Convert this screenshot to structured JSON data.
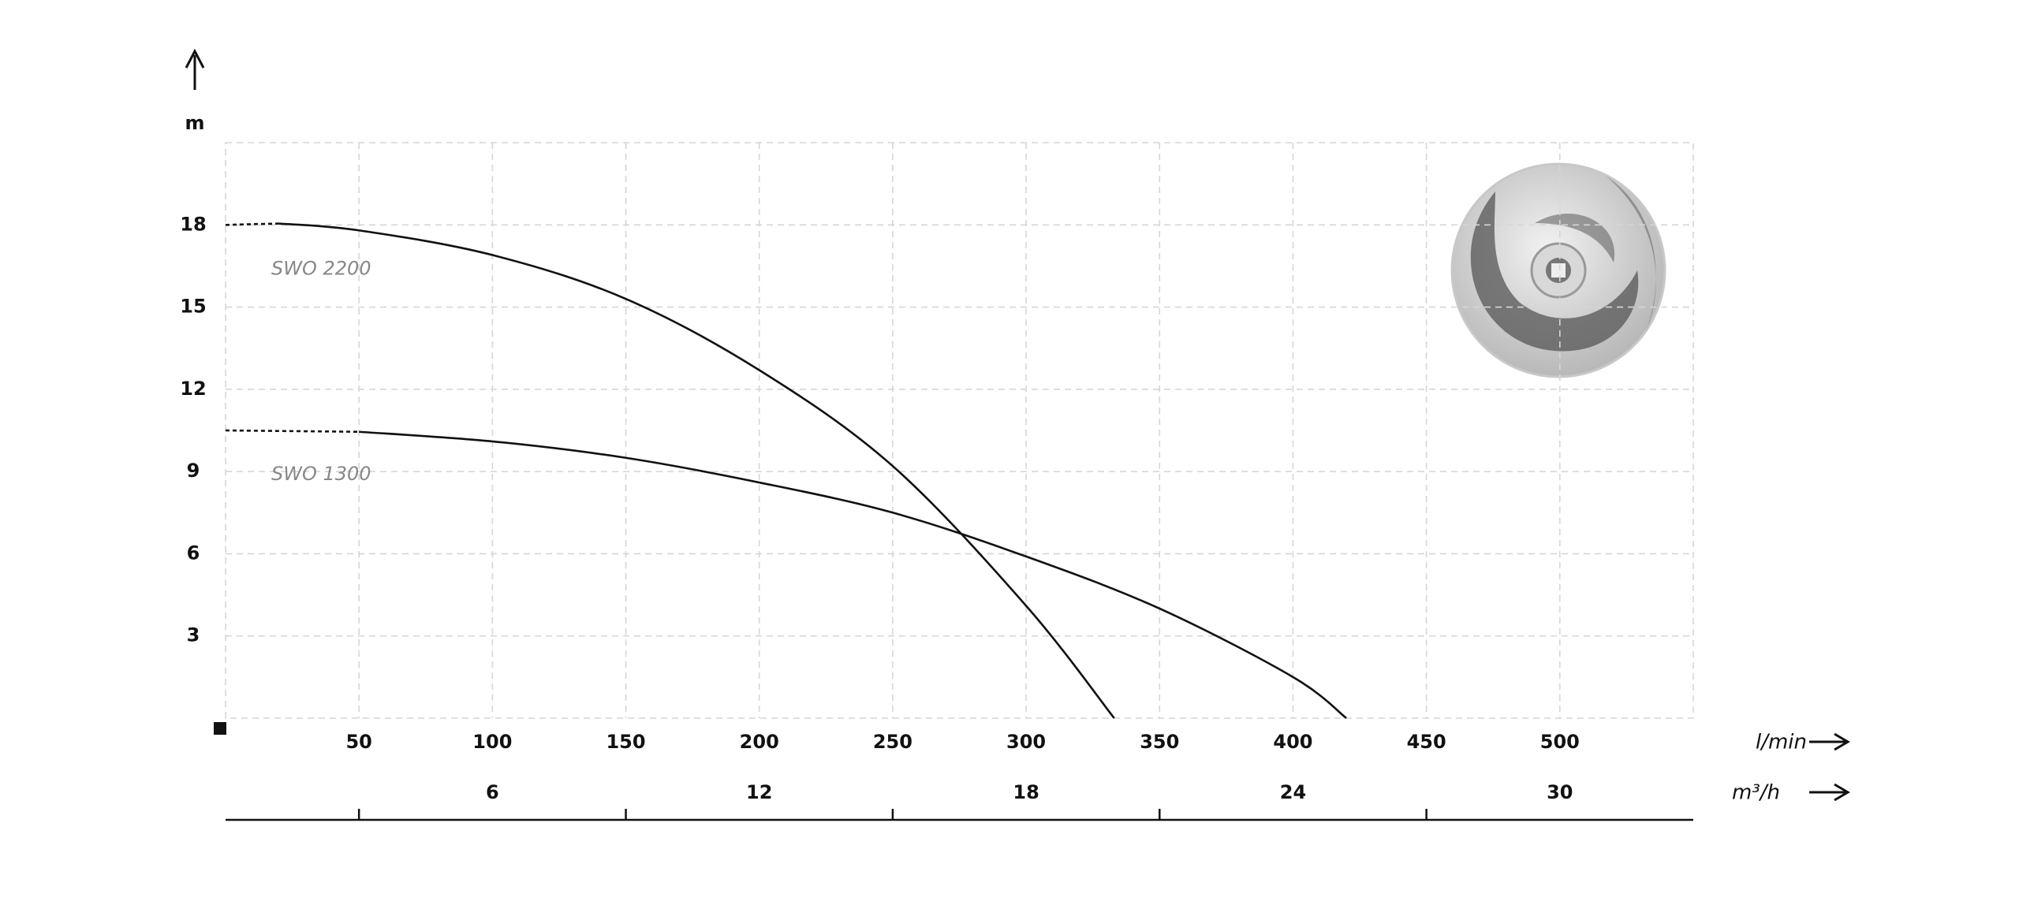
{
  "chart_data": {
    "type": "line",
    "x": [
      0,
      20,
      50,
      100,
      150,
      200,
      250,
      300,
      333
    ],
    "x_label": "l/min",
    "y_label": "m",
    "x2_label": "m³/h",
    "series": [
      {
        "name": "SWO 2200",
        "color": "#111111",
        "x": [
          0,
          20,
          50,
          100,
          150,
          200,
          250,
          300,
          333
        ],
        "values": [
          18,
          18.05,
          17.8,
          16.9,
          15.3,
          12.7,
          9.2,
          4.1,
          0
        ]
      },
      {
        "name": "SWO 1300",
        "color": "#111111",
        "x": [
          0,
          50,
          100,
          150,
          200,
          250,
          300,
          350,
          400,
          420
        ],
        "values": [
          10.5,
          10.45,
          10.1,
          9.5,
          8.6,
          7.5,
          5.9,
          4.0,
          1.5,
          0
        ]
      }
    ],
    "xlim": [
      0,
      550
    ],
    "xticks": [
      50,
      100,
      150,
      200,
      250,
      300,
      350,
      400,
      450,
      500
    ],
    "ylim": [
      0,
      21
    ],
    "yticks": [
      3,
      6,
      9,
      12,
      15,
      18
    ],
    "x2lim": [
      0,
      33
    ],
    "x2ticks": [
      6,
      12,
      18,
      24,
      30
    ],
    "grid": true
  }
}
